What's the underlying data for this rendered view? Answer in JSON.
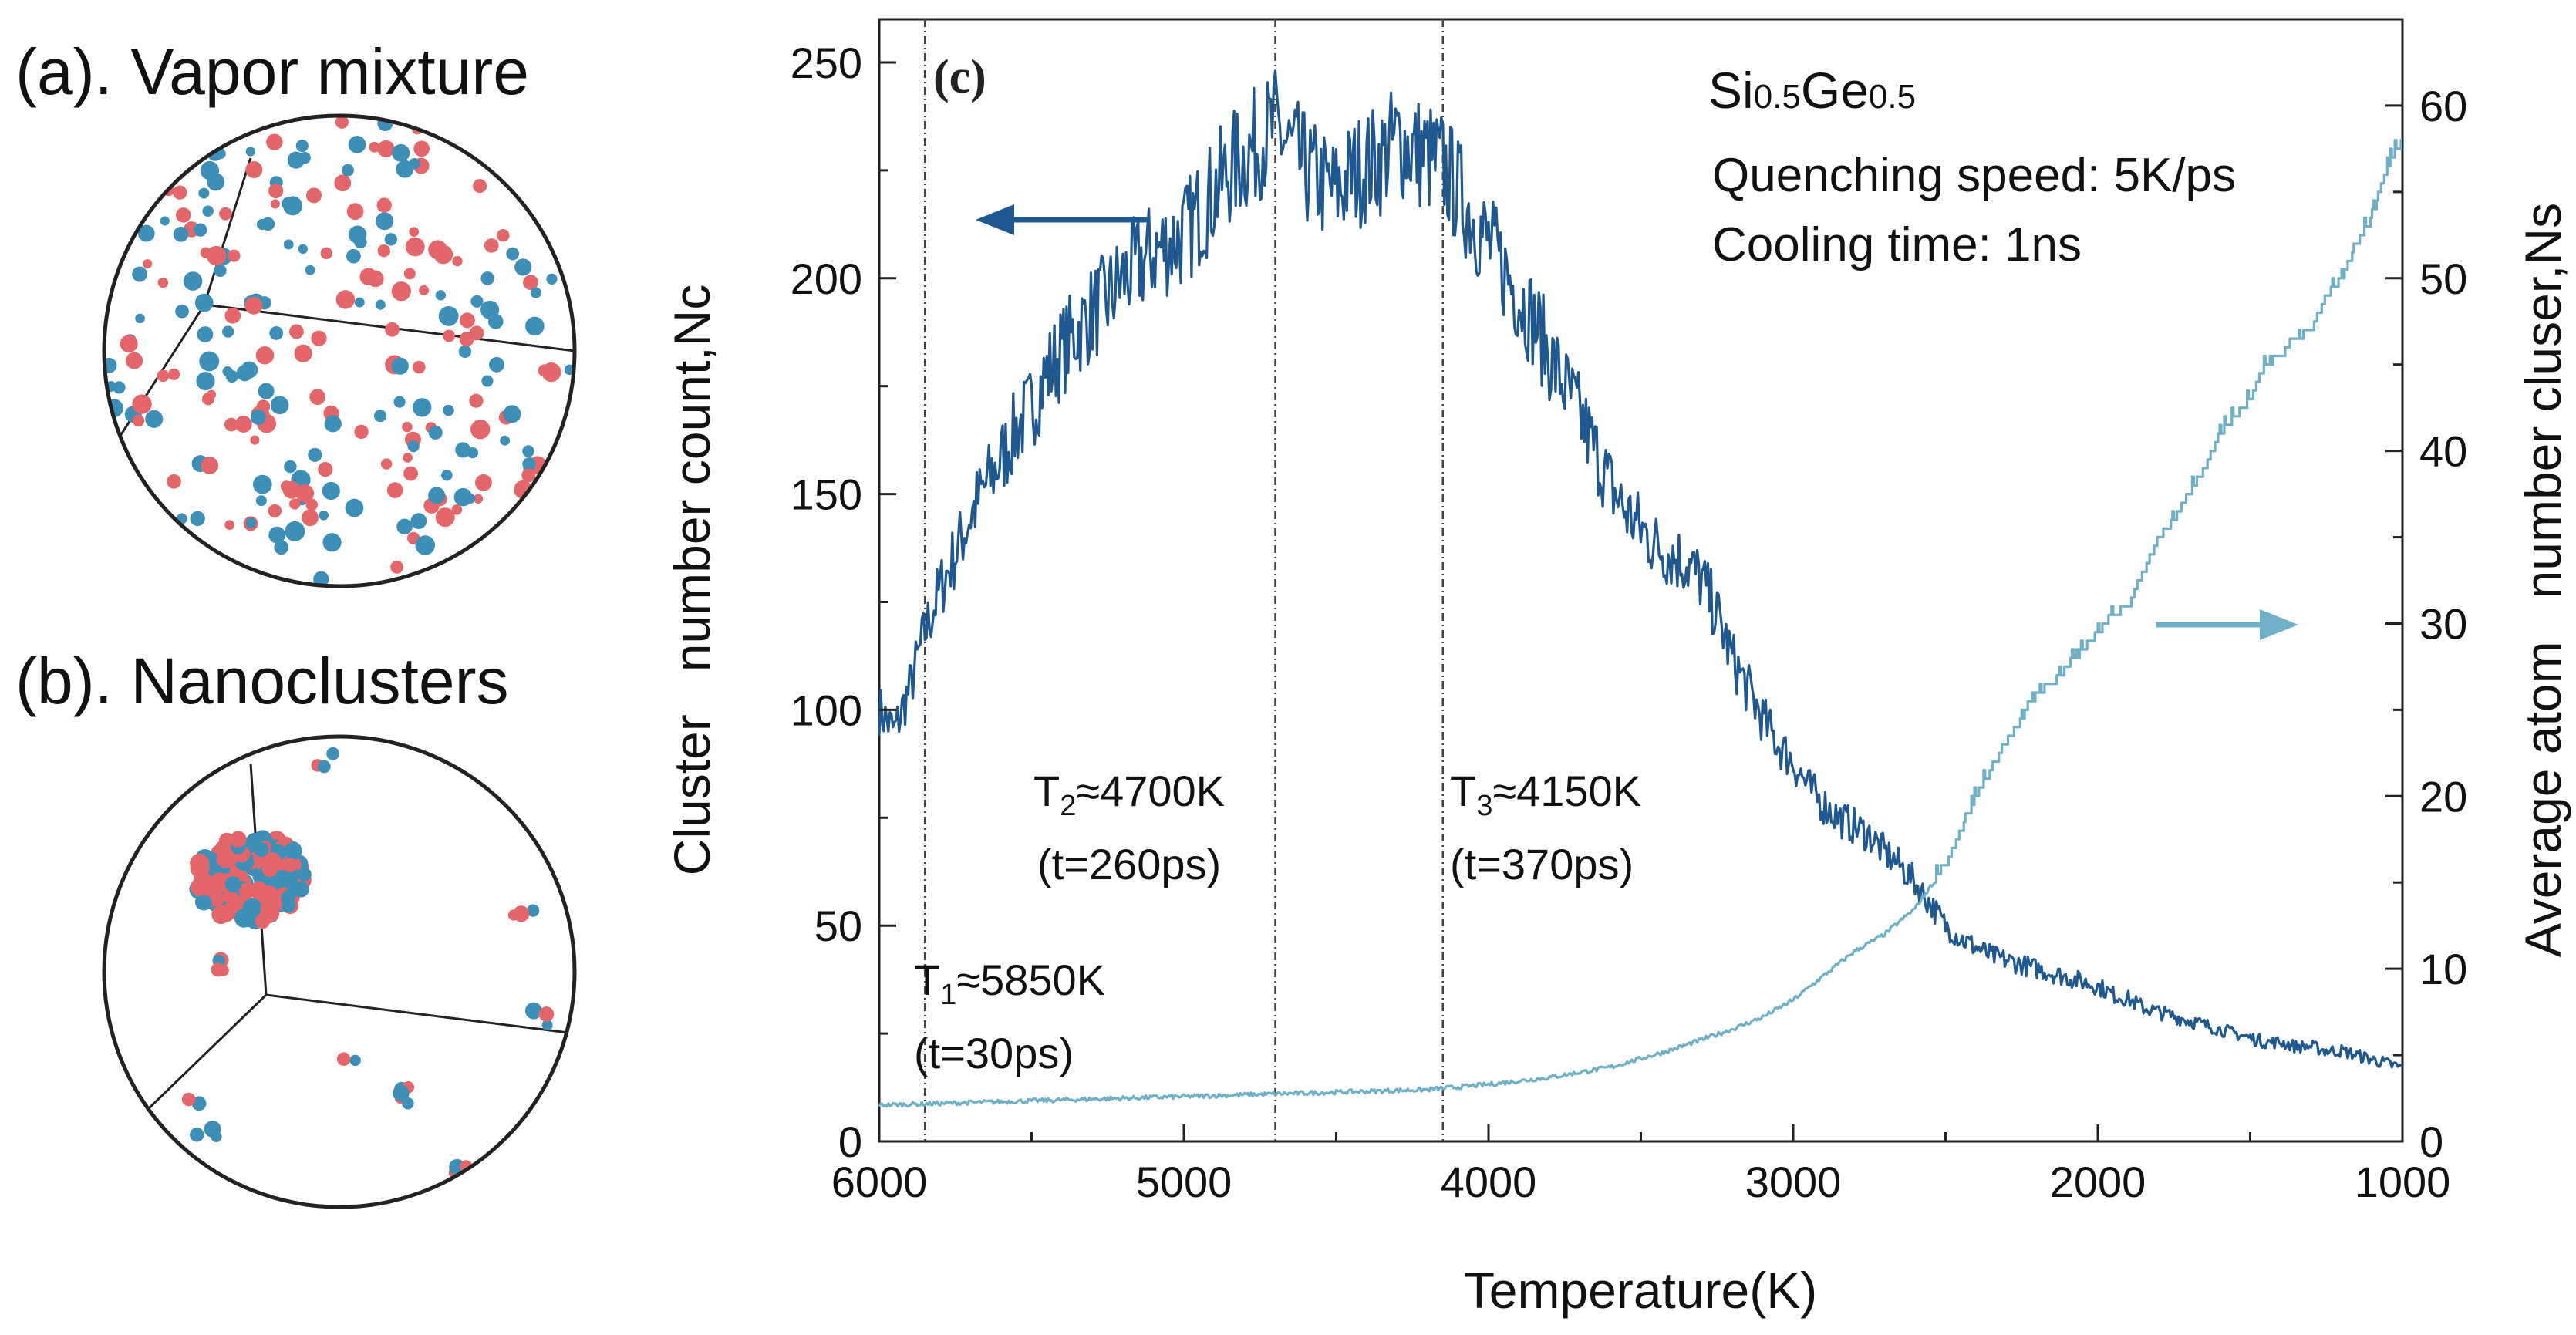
{
  "panel_a_title": "(a). Vapor mixture",
  "panel_b_title": "(b). Nanoclusters",
  "panel_c_label": "(c)",
  "colors": {
    "si_atom": "#e4666b",
    "ge_atom": "#3e8fb8",
    "cluster_count_line": "#1f5790",
    "avg_atom_line": "#6fb0c6",
    "frame": "#222222"
  },
  "chart_data": {
    "type": "line",
    "title": "",
    "xlabel": "Temperature(K)",
    "ylabel_left": "Cluster   number count,Nc",
    "ylabel_right": "Average atom   number cluser,Ns",
    "xlim": [
      6000,
      1000
    ],
    "x_reversed": true,
    "ylim_left": [
      0,
      260
    ],
    "ylim_right": [
      0,
      65
    ],
    "x_ticks": [
      6000,
      5000,
      4000,
      3000,
      2000,
      1000
    ],
    "y_left_ticks": [
      0,
      50,
      100,
      150,
      200,
      250
    ],
    "y_right_ticks": [
      0,
      10,
      20,
      30,
      40,
      50,
      60
    ],
    "grid": false,
    "series": [
      {
        "name": "Nc",
        "axis": "left",
        "x": [
          6000,
          5950,
          5900,
          5850,
          5800,
          5750,
          5700,
          5650,
          5600,
          5550,
          5500,
          5450,
          5400,
          5350,
          5300,
          5250,
          5200,
          5150,
          5100,
          5050,
          5000,
          4950,
          4900,
          4850,
          4800,
          4750,
          4700,
          4650,
          4600,
          4550,
          4500,
          4450,
          4400,
          4350,
          4300,
          4250,
          4200,
          4150,
          4100,
          4050,
          4000,
          3950,
          3900,
          3850,
          3800,
          3750,
          3700,
          3650,
          3600,
          3550,
          3500,
          3450,
          3400,
          3350,
          3300,
          3250,
          3200,
          3150,
          3100,
          3050,
          3000,
          2950,
          2900,
          2850,
          2800,
          2750,
          2700,
          2650,
          2600,
          2550,
          2500,
          2450,
          2400,
          2350,
          2300,
          2250,
          2200,
          2150,
          2100,
          2050,
          2000,
          1950,
          1900,
          1850,
          1800,
          1750,
          1700,
          1650,
          1600,
          1550,
          1500,
          1450,
          1400,
          1350,
          1300,
          1250,
          1200,
          1150,
          1100,
          1050,
          1000
        ],
        "values": [
          100,
          95,
          105,
          118,
          128,
          136,
          145,
          152,
          158,
          165,
          170,
          178,
          183,
          188,
          192,
          195,
          200,
          203,
          206,
          208,
          210,
          215,
          220,
          225,
          228,
          232,
          235,
          230,
          225,
          222,
          220,
          224,
          226,
          228,
          232,
          230,
          228,
          226,
          220,
          214,
          208,
          202,
          196,
          190,
          182,
          175,
          168,
          160,
          152,
          146,
          142,
          138,
          136,
          134,
          130,
          122,
          112,
          105,
          98,
          92,
          88,
          82,
          78,
          75,
          73,
          71,
          67,
          64,
          60,
          55,
          50,
          47,
          45,
          43,
          42,
          41,
          40,
          39,
          38,
          37,
          36,
          34,
          33,
          31,
          30,
          29,
          28,
          27,
          26,
          25,
          24,
          23,
          23,
          22,
          22,
          21,
          21,
          20,
          19,
          18,
          17
        ]
      },
      {
        "name": "Ns",
        "axis": "right",
        "x": [
          6000,
          5800,
          5600,
          5400,
          5200,
          5000,
          4800,
          4600,
          4400,
          4200,
          4000,
          3800,
          3600,
          3400,
          3200,
          3100,
          3000,
          2900,
          2800,
          2700,
          2600,
          2500,
          2450,
          2400,
          2350,
          2300,
          2250,
          2200,
          2150,
          2100,
          2050,
          2000,
          1950,
          1900,
          1850,
          1800,
          1750,
          1700,
          1650,
          1600,
          1550,
          1500,
          1450,
          1400,
          1350,
          1300,
          1250,
          1200,
          1150,
          1100,
          1050,
          1000
        ],
        "values": [
          2.1,
          2.2,
          2.3,
          2.4,
          2.5,
          2.6,
          2.7,
          2.8,
          2.9,
          3.0,
          3.3,
          3.7,
          4.3,
          5.3,
          6.5,
          7.2,
          8.2,
          9.6,
          11.0,
          12.0,
          13.5,
          16.0,
          18.0,
          20.0,
          21.5,
          23.0,
          24.5,
          26.0,
          26.5,
          27.5,
          28.5,
          29.5,
          30.5,
          31.0,
          33.0,
          35.0,
          36.0,
          37.5,
          39.0,
          41.0,
          42.0,
          43.0,
          45.0,
          45.5,
          46.5,
          47.0,
          49.0,
          50.0,
          52.0,
          53.5,
          56.5,
          58.0
        ]
      }
    ],
    "vlines": [
      {
        "x": 5850,
        "label": "T1≈5850K",
        "sub": "(t=30ps)"
      },
      {
        "x": 4700,
        "label": "T2≈4700K",
        "sub": "(t=260ps)"
      },
      {
        "x": 4150,
        "label": "T3≈4150K",
        "sub": "(t=370ps)"
      }
    ],
    "annotations": {
      "material": "Si0.5Ge0.5",
      "line1": "Quenching speed: 5K/ps",
      "line2": "Cooling time: 1ns"
    }
  }
}
